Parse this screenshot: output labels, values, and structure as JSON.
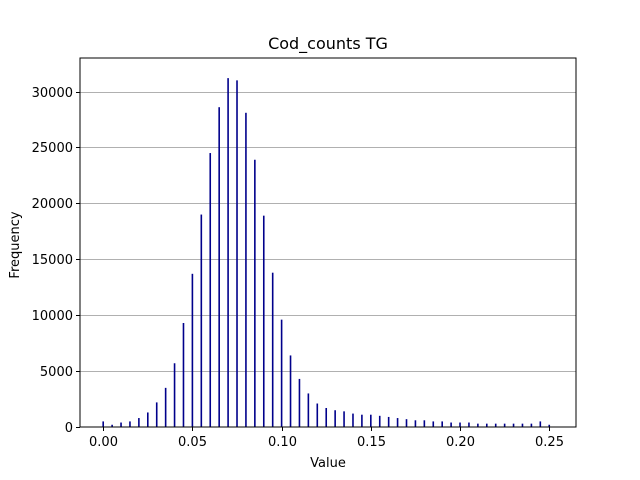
{
  "chart_data": {
    "type": "bar",
    "title": "Cod_counts TG",
    "xlabel": "Value",
    "ylabel": "Frequency",
    "xlim": [
      -0.013,
      0.265
    ],
    "ylim": [
      0,
      33000
    ],
    "grid": "y",
    "bar_color": "#00008b",
    "xticks": [
      0.0,
      0.05,
      0.1,
      0.15,
      0.2,
      0.25
    ],
    "xtick_labels": [
      "0.00",
      "0.05",
      "0.10",
      "0.15",
      "0.20",
      "0.25"
    ],
    "yticks": [
      0,
      5000,
      10000,
      15000,
      20000,
      25000,
      30000
    ],
    "ytick_labels": [
      "0",
      "5000",
      "10000",
      "15000",
      "20000",
      "25000",
      "30000"
    ],
    "x": [
      0.0,
      0.005,
      0.01,
      0.015,
      0.02,
      0.025,
      0.03,
      0.035,
      0.04,
      0.045,
      0.05,
      0.055,
      0.06,
      0.065,
      0.07,
      0.075,
      0.08,
      0.085,
      0.09,
      0.095,
      0.1,
      0.105,
      0.11,
      0.115,
      0.12,
      0.125,
      0.13,
      0.135,
      0.14,
      0.145,
      0.15,
      0.155,
      0.16,
      0.165,
      0.17,
      0.175,
      0.18,
      0.185,
      0.19,
      0.195,
      0.2,
      0.205,
      0.21,
      0.215,
      0.22,
      0.225,
      0.23,
      0.235,
      0.24,
      0.245,
      0.25
    ],
    "values": [
      500,
      200,
      400,
      500,
      800,
      1300,
      2200,
      3500,
      5700,
      9300,
      13700,
      19000,
      24500,
      28600,
      31200,
      31000,
      28100,
      23900,
      18900,
      13800,
      9600,
      6400,
      4300,
      3000,
      2100,
      1700,
      1500,
      1400,
      1200,
      1100,
      1100,
      1000,
      900,
      800,
      700,
      600,
      600,
      500,
      500,
      400,
      400,
      400,
      300,
      300,
      300,
      300,
      300,
      300,
      300,
      500,
      200
    ]
  }
}
